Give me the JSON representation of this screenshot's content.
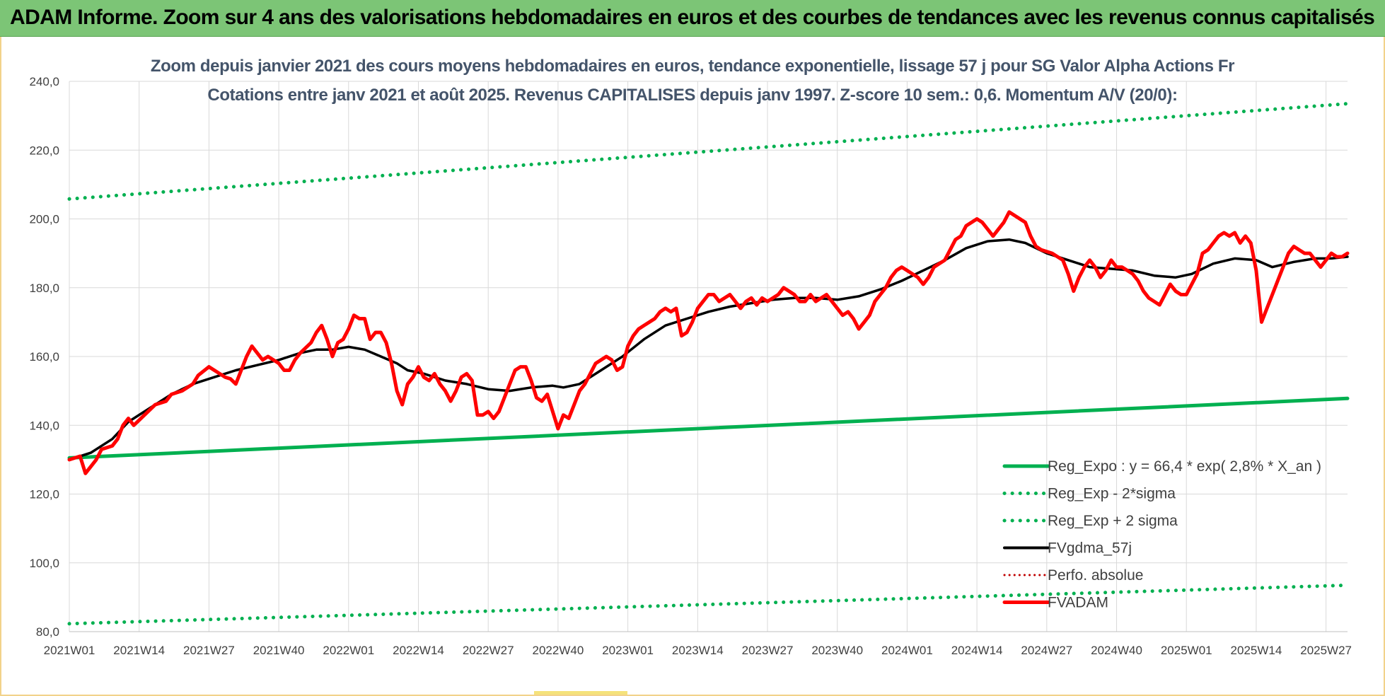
{
  "header": {
    "title": "ADAM Informe. Zoom sur 4 ans des valorisations hebdomadaires en euros et des courbes de tendances avec les revenus connus capitalisés"
  },
  "chart_data": {
    "type": "line",
    "title": "Zoom depuis janvier 2021 des cours moyens hebdomadaires en euros, tendance exponentielle, lissage 57 j pour SG Valor Alpha Actions Fr",
    "subtitle": "Cotations entre janv 2021 et août 2025. Revenus CAPITALISES depuis janv 1997. Z-score 10 sem.: 0,6. Momentum A/V (20/0):",
    "ylim": [
      80,
      240
    ],
    "yticks": [
      "80,0",
      "100,0",
      "120,0",
      "140,0",
      "160,0",
      "180,0",
      "200,0",
      "220,0",
      "240,0"
    ],
    "x_range_weeks": [
      0,
      238
    ],
    "xticks": [
      {
        "label": "2021W01",
        "week": 0
      },
      {
        "label": "2021W14",
        "week": 13
      },
      {
        "label": "2021W27",
        "week": 26
      },
      {
        "label": "2021W40",
        "week": 39
      },
      {
        "label": "2022W01",
        "week": 52
      },
      {
        "label": "2022W14",
        "week": 65
      },
      {
        "label": "2022W27",
        "week": 78
      },
      {
        "label": "2022W40",
        "week": 91
      },
      {
        "label": "2023W01",
        "week": 104
      },
      {
        "label": "2023W14",
        "week": 117
      },
      {
        "label": "2023W27",
        "week": 130
      },
      {
        "label": "2023W40",
        "week": 143
      },
      {
        "label": "2024W01",
        "week": 156
      },
      {
        "label": "2024W14",
        "week": 169
      },
      {
        "label": "2024W27",
        "week": 182
      },
      {
        "label": "2024W40",
        "week": 195
      },
      {
        "label": "2025W01",
        "week": 208
      },
      {
        "label": "2025W14",
        "week": 221
      },
      {
        "label": "2025W27",
        "week": 234
      }
    ],
    "grid": {
      "horizontal": true,
      "vertical": true
    },
    "legend_position": "bottom-right",
    "series": [
      {
        "name": "Reg_Expo : y = 66,4 * exp( 2,8% *  X_an )",
        "style": "solid",
        "color": "#00b050",
        "points": [
          [
            0,
            130.5
          ],
          [
            238,
            147.8
          ]
        ]
      },
      {
        "name": "Reg_Exp - 2*sigma",
        "style": "dotted",
        "color": "#00b050",
        "points": [
          [
            0,
            82.3
          ],
          [
            238,
            93.5
          ]
        ]
      },
      {
        "name": "Reg_Exp + 2 sigma",
        "style": "dotted",
        "color": "#00b050",
        "points": [
          [
            0,
            205.8
          ],
          [
            238,
            233.5
          ]
        ]
      },
      {
        "name": "FVgdma_57j",
        "style": "solid",
        "color": "#000000",
        "points": [
          [
            0,
            130
          ],
          [
            4,
            132
          ],
          [
            8,
            136
          ],
          [
            11,
            141
          ],
          [
            15,
            145
          ],
          [
            19,
            149
          ],
          [
            23,
            152
          ],
          [
            27,
            154
          ],
          [
            31,
            156
          ],
          [
            35,
            157.5
          ],
          [
            39,
            159
          ],
          [
            43,
            161
          ],
          [
            46,
            162
          ],
          [
            49,
            162
          ],
          [
            52,
            162.8
          ],
          [
            55,
            162
          ],
          [
            58,
            160
          ],
          [
            61,
            158
          ],
          [
            63,
            156
          ],
          [
            66,
            155
          ],
          [
            70,
            153
          ],
          [
            74,
            152
          ],
          [
            78,
            150.5
          ],
          [
            82,
            150
          ],
          [
            86,
            151
          ],
          [
            90,
            151.5
          ],
          [
            92,
            151
          ],
          [
            95,
            152
          ],
          [
            99,
            156
          ],
          [
            103,
            160
          ],
          [
            107,
            165
          ],
          [
            111,
            169
          ],
          [
            115,
            171
          ],
          [
            119,
            173
          ],
          [
            123,
            174.5
          ],
          [
            127,
            175.5
          ],
          [
            131,
            176.5
          ],
          [
            135,
            177
          ],
          [
            139,
            177
          ],
          [
            143,
            176.5
          ],
          [
            147,
            177.5
          ],
          [
            151,
            179.5
          ],
          [
            155,
            182
          ],
          [
            159,
            185
          ],
          [
            163,
            188
          ],
          [
            167,
            191.5
          ],
          [
            171,
            193.5
          ],
          [
            175,
            194
          ],
          [
            178,
            193
          ],
          [
            182,
            190
          ],
          [
            186,
            188
          ],
          [
            190,
            186
          ],
          [
            194,
            185.5
          ],
          [
            198,
            185
          ],
          [
            202,
            183.5
          ],
          [
            206,
            183
          ],
          [
            209,
            184
          ],
          [
            213,
            187
          ],
          [
            217,
            188.5
          ],
          [
            221,
            188
          ],
          [
            224,
            186
          ],
          [
            228,
            187.5
          ],
          [
            232,
            188.5
          ],
          [
            235,
            188.5
          ],
          [
            238,
            189
          ]
        ]
      },
      {
        "name": "Perfo. absolue",
        "style": "dotted",
        "color": "#c00000",
        "points": []
      },
      {
        "name": "FVADAM",
        "style": "solid",
        "color": "#ff0000",
        "points": [
          [
            0,
            130
          ],
          [
            2,
            131
          ],
          [
            3,
            126
          ],
          [
            5,
            130
          ],
          [
            6,
            133
          ],
          [
            8,
            134
          ],
          [
            9,
            136
          ],
          [
            10,
            140
          ],
          [
            11,
            142
          ],
          [
            12,
            140
          ],
          [
            14,
            143
          ],
          [
            16,
            146
          ],
          [
            18,
            147
          ],
          [
            19,
            149
          ],
          [
            21,
            150
          ],
          [
            23,
            152
          ],
          [
            24,
            154.5
          ],
          [
            26,
            157
          ],
          [
            28,
            155
          ],
          [
            29,
            154
          ],
          [
            30,
            153.5
          ],
          [
            31,
            152
          ],
          [
            32,
            156
          ],
          [
            33,
            160
          ],
          [
            34,
            163
          ],
          [
            36,
            159
          ],
          [
            37,
            160
          ],
          [
            39,
            158
          ],
          [
            40,
            156
          ],
          [
            41,
            156
          ],
          [
            42,
            159
          ],
          [
            43,
            161
          ],
          [
            45,
            164
          ],
          [
            46,
            167
          ],
          [
            47,
            169
          ],
          [
            48,
            165
          ],
          [
            49,
            160
          ],
          [
            50,
            164
          ],
          [
            51,
            165
          ],
          [
            52,
            168
          ],
          [
            53,
            172
          ],
          [
            54,
            171
          ],
          [
            55,
            171
          ],
          [
            56,
            165
          ],
          [
            57,
            167
          ],
          [
            58,
            167
          ],
          [
            59,
            164
          ],
          [
            60,
            158
          ],
          [
            61,
            150
          ],
          [
            62,
            146
          ],
          [
            63,
            152
          ],
          [
            64,
            154
          ],
          [
            65,
            157
          ],
          [
            66,
            154
          ],
          [
            67,
            153
          ],
          [
            68,
            155
          ],
          [
            69,
            152
          ],
          [
            70,
            150
          ],
          [
            71,
            147
          ],
          [
            72,
            150
          ],
          [
            73,
            154
          ],
          [
            74,
            155
          ],
          [
            75,
            153
          ],
          [
            76,
            143
          ],
          [
            77,
            143
          ],
          [
            78,
            144
          ],
          [
            79,
            142
          ],
          [
            80,
            144
          ],
          [
            81,
            148
          ],
          [
            82,
            152
          ],
          [
            83,
            156
          ],
          [
            84,
            157
          ],
          [
            85,
            157
          ],
          [
            86,
            153
          ],
          [
            87,
            148
          ],
          [
            88,
            147
          ],
          [
            89,
            149
          ],
          [
            90,
            144
          ],
          [
            91,
            139
          ],
          [
            92,
            143
          ],
          [
            93,
            142
          ],
          [
            94,
            146
          ],
          [
            95,
            150
          ],
          [
            96,
            152
          ],
          [
            97,
            155
          ],
          [
            98,
            158
          ],
          [
            99,
            159
          ],
          [
            100,
            160
          ],
          [
            101,
            159
          ],
          [
            102,
            156
          ],
          [
            103,
            157
          ],
          [
            104,
            163
          ],
          [
            105,
            166
          ],
          [
            106,
            168
          ],
          [
            107,
            169
          ],
          [
            108,
            170
          ],
          [
            109,
            171
          ],
          [
            110,
            173
          ],
          [
            111,
            174
          ],
          [
            112,
            173
          ],
          [
            113,
            174
          ],
          [
            114,
            166
          ],
          [
            115,
            167
          ],
          [
            116,
            170
          ],
          [
            117,
            174
          ],
          [
            118,
            176
          ],
          [
            119,
            178
          ],
          [
            120,
            178
          ],
          [
            121,
            176
          ],
          [
            122,
            177
          ],
          [
            123,
            178
          ],
          [
            124,
            176
          ],
          [
            125,
            174
          ],
          [
            126,
            176
          ],
          [
            127,
            177
          ],
          [
            128,
            175
          ],
          [
            129,
            177
          ],
          [
            130,
            176
          ],
          [
            131,
            177
          ],
          [
            132,
            178
          ],
          [
            133,
            180
          ],
          [
            134,
            179
          ],
          [
            135,
            178
          ],
          [
            136,
            176
          ],
          [
            137,
            176
          ],
          [
            138,
            178
          ],
          [
            139,
            176
          ],
          [
            140,
            177
          ],
          [
            141,
            178
          ],
          [
            142,
            176
          ],
          [
            143,
            174
          ],
          [
            144,
            172
          ],
          [
            145,
            173
          ],
          [
            146,
            171
          ],
          [
            147,
            168
          ],
          [
            148,
            170
          ],
          [
            149,
            172
          ],
          [
            150,
            176
          ],
          [
            151,
            178
          ],
          [
            152,
            180
          ],
          [
            153,
            183
          ],
          [
            154,
            185
          ],
          [
            155,
            186
          ],
          [
            156,
            185
          ],
          [
            157,
            184
          ],
          [
            158,
            183
          ],
          [
            159,
            181
          ],
          [
            160,
            183
          ],
          [
            161,
            186
          ],
          [
            162,
            187
          ],
          [
            163,
            188
          ],
          [
            164,
            191
          ],
          [
            165,
            194
          ],
          [
            166,
            195
          ],
          [
            167,
            198
          ],
          [
            168,
            199
          ],
          [
            169,
            200
          ],
          [
            170,
            199
          ],
          [
            171,
            197
          ],
          [
            172,
            195
          ],
          [
            173,
            197
          ],
          [
            174,
            199
          ],
          [
            175,
            202
          ],
          [
            176,
            201
          ],
          [
            177,
            200
          ],
          [
            178,
            199
          ],
          [
            179,
            195
          ],
          [
            180,
            192
          ],
          [
            181,
            191
          ],
          [
            183,
            190
          ],
          [
            185,
            188
          ],
          [
            186,
            184
          ],
          [
            187,
            179
          ],
          [
            188,
            183
          ],
          [
            189,
            186
          ],
          [
            190,
            188
          ],
          [
            191,
            186
          ],
          [
            192,
            183
          ],
          [
            193,
            185
          ],
          [
            194,
            188
          ],
          [
            195,
            186
          ],
          [
            196,
            186
          ],
          [
            197,
            185
          ],
          [
            198,
            184
          ],
          [
            199,
            182
          ],
          [
            200,
            179
          ],
          [
            201,
            177
          ],
          [
            202,
            176
          ],
          [
            203,
            175
          ],
          [
            204,
            178
          ],
          [
            205,
            181
          ],
          [
            206,
            179
          ],
          [
            207,
            178
          ],
          [
            208,
            178
          ],
          [
            209,
            181
          ],
          [
            210,
            184
          ],
          [
            211,
            190
          ],
          [
            212,
            191
          ],
          [
            213,
            193
          ],
          [
            214,
            195
          ],
          [
            215,
            196
          ],
          [
            216,
            195
          ],
          [
            217,
            196
          ],
          [
            218,
            193
          ],
          [
            219,
            195
          ],
          [
            220,
            193
          ],
          [
            221,
            185
          ],
          [
            222,
            170
          ],
          [
            223,
            174
          ],
          [
            224,
            178
          ],
          [
            225,
            182
          ],
          [
            226,
            186
          ],
          [
            227,
            190
          ],
          [
            228,
            192
          ],
          [
            229,
            191
          ],
          [
            230,
            190
          ],
          [
            231,
            190
          ],
          [
            232,
            188
          ],
          [
            233,
            186
          ],
          [
            234,
            188
          ],
          [
            235,
            190
          ],
          [
            236,
            189
          ],
          [
            237,
            189
          ],
          [
            238,
            190
          ]
        ]
      }
    ]
  }
}
